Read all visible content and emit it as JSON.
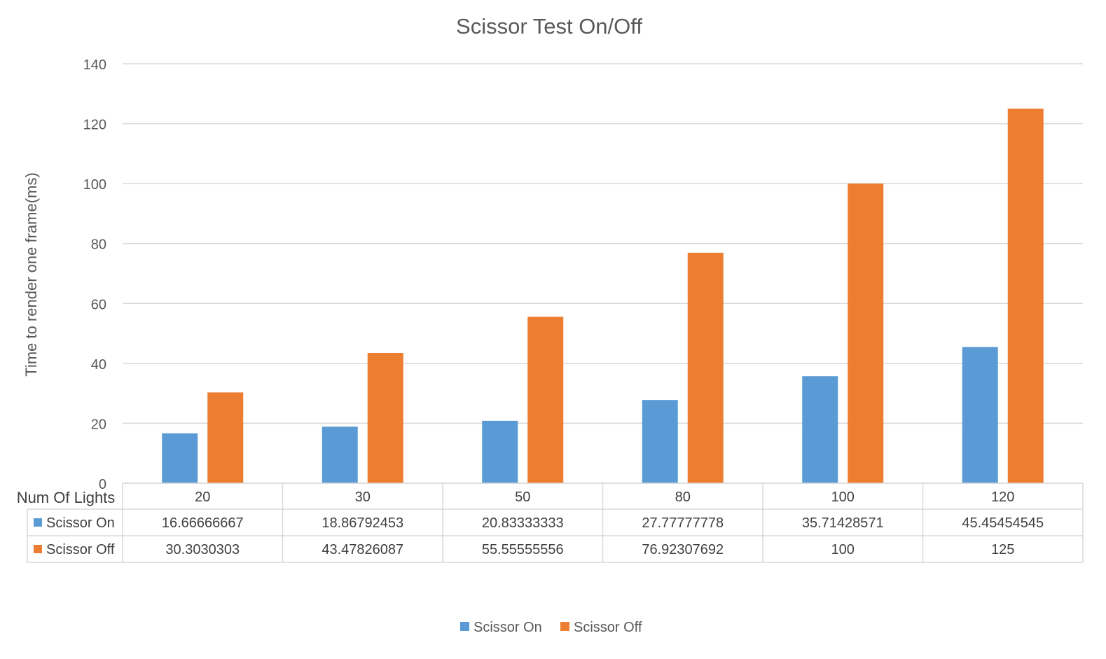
{
  "chart_data": {
    "type": "bar",
    "title": "Scissor Test On/Off",
    "xlabel": "Num Of Lights",
    "ylabel": "Time to render one frame(ms)",
    "categories": [
      "20",
      "30",
      "50",
      "80",
      "100",
      "120"
    ],
    "series": [
      {
        "name": "Scissor On",
        "color": "#5B9BD5",
        "values": [
          16.66666667,
          18.86792453,
          20.83333333,
          27.77777778,
          35.71428571,
          45.45454545
        ],
        "labels": [
          "16.66666667",
          "18.86792453",
          "20.83333333",
          "27.77777778",
          "35.71428571",
          "45.45454545"
        ]
      },
      {
        "name": "Scissor Off",
        "color": "#ED7D31",
        "values": [
          30.3030303,
          43.47826087,
          55.55555556,
          76.92307692,
          100,
          125
        ],
        "labels": [
          "30.3030303",
          "43.47826087",
          "55.55555556",
          "76.92307692",
          "100",
          "125"
        ]
      }
    ],
    "ylim": [
      0,
      140
    ],
    "yticks": [
      "0",
      "20",
      "40",
      "60",
      "80",
      "100",
      "120",
      "140"
    ],
    "grid": true,
    "legend": "bottom",
    "data_table": true
  }
}
